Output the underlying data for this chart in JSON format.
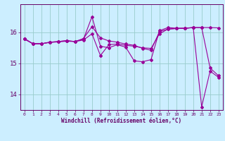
{
  "xlabel": "Windchill (Refroidissement éolien,°C)",
  "background_color": "#cceeff",
  "line_color": "#990099",
  "marker_color": "#990099",
  "grid_color": "#99cccc",
  "axis_color": "#660066",
  "text_color": "#660066",
  "xlim": [
    -0.5,
    23.5
  ],
  "ylim": [
    13.5,
    16.9
  ],
  "yticks": [
    14,
    15,
    16
  ],
  "xticks": [
    0,
    1,
    2,
    3,
    4,
    5,
    6,
    7,
    8,
    9,
    10,
    11,
    12,
    13,
    14,
    15,
    16,
    17,
    18,
    19,
    20,
    21,
    22,
    23
  ],
  "series1_x": [
    0,
    1,
    2,
    3,
    4,
    5,
    6,
    7,
    8,
    9,
    10,
    11,
    12,
    13,
    14,
    15,
    16,
    17,
    18,
    19,
    20,
    21,
    22,
    23
  ],
  "series1_y": [
    15.8,
    15.63,
    15.63,
    15.68,
    15.7,
    15.73,
    15.7,
    15.78,
    16.5,
    15.55,
    15.5,
    15.6,
    15.52,
    15.08,
    15.05,
    15.12,
    16.05,
    16.15,
    16.13,
    16.13,
    16.15,
    13.6,
    14.75,
    14.55
  ],
  "series2_x": [
    0,
    1,
    2,
    3,
    4,
    5,
    6,
    7,
    8,
    9,
    10,
    11,
    12,
    13,
    14,
    15,
    16,
    17,
    18,
    19,
    20,
    21,
    22,
    23
  ],
  "series2_y": [
    15.78,
    15.63,
    15.63,
    15.68,
    15.7,
    15.73,
    15.7,
    15.75,
    15.95,
    15.25,
    15.6,
    15.62,
    15.58,
    15.55,
    15.5,
    15.48,
    15.95,
    16.1,
    16.12,
    16.13,
    16.15,
    16.15,
    16.15,
    16.14
  ],
  "series3_x": [
    0,
    1,
    2,
    3,
    4,
    5,
    6,
    7,
    8,
    9,
    10,
    11,
    12,
    13,
    14,
    15,
    16,
    17,
    18,
    19,
    20,
    21,
    22,
    23
  ],
  "series3_y": [
    15.78,
    15.63,
    15.63,
    15.67,
    15.69,
    15.71,
    15.7,
    15.8,
    16.18,
    15.82,
    15.72,
    15.68,
    15.62,
    15.58,
    15.48,
    15.42,
    16.02,
    16.1,
    16.12,
    16.12,
    16.15,
    16.15,
    14.85,
    14.6
  ]
}
